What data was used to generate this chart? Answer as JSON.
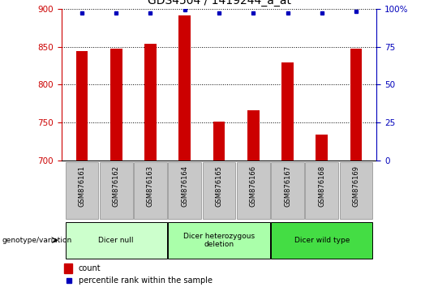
{
  "title": "GDS4504 / 1419244_a_at",
  "samples": [
    "GSM876161",
    "GSM876162",
    "GSM876163",
    "GSM876164",
    "GSM876165",
    "GSM876166",
    "GSM876167",
    "GSM876168",
    "GSM876169"
  ],
  "counts": [
    844,
    847,
    854,
    891,
    751,
    766,
    829,
    734,
    847
  ],
  "percentile_ranks": [
    97,
    97,
    97,
    99,
    97,
    97,
    97,
    97,
    98
  ],
  "ylim_left": [
    700,
    900
  ],
  "ylim_right": [
    0,
    100
  ],
  "yticks_left": [
    700,
    750,
    800,
    850,
    900
  ],
  "yticks_right": [
    0,
    25,
    50,
    75,
    100
  ],
  "bar_color": "#CC0000",
  "dot_color": "#0000BB",
  "left_axis_color": "#CC0000",
  "right_axis_color": "#0000BB",
  "tick_bg_color": "#C8C8C8",
  "group_info": [
    {
      "label": "Dicer null",
      "start": 0,
      "end": 2,
      "color": "#CCFFCC"
    },
    {
      "label": "Dicer heterozygous\ndeletion",
      "start": 3,
      "end": 5,
      "color": "#AAFFAA"
    },
    {
      "label": "Dicer wild type",
      "start": 6,
      "end": 8,
      "color": "#44DD44"
    }
  ],
  "legend_bar_label": "count",
  "legend_dot_label": "percentile rank within the sample",
  "genotype_label": "genotype/variation"
}
